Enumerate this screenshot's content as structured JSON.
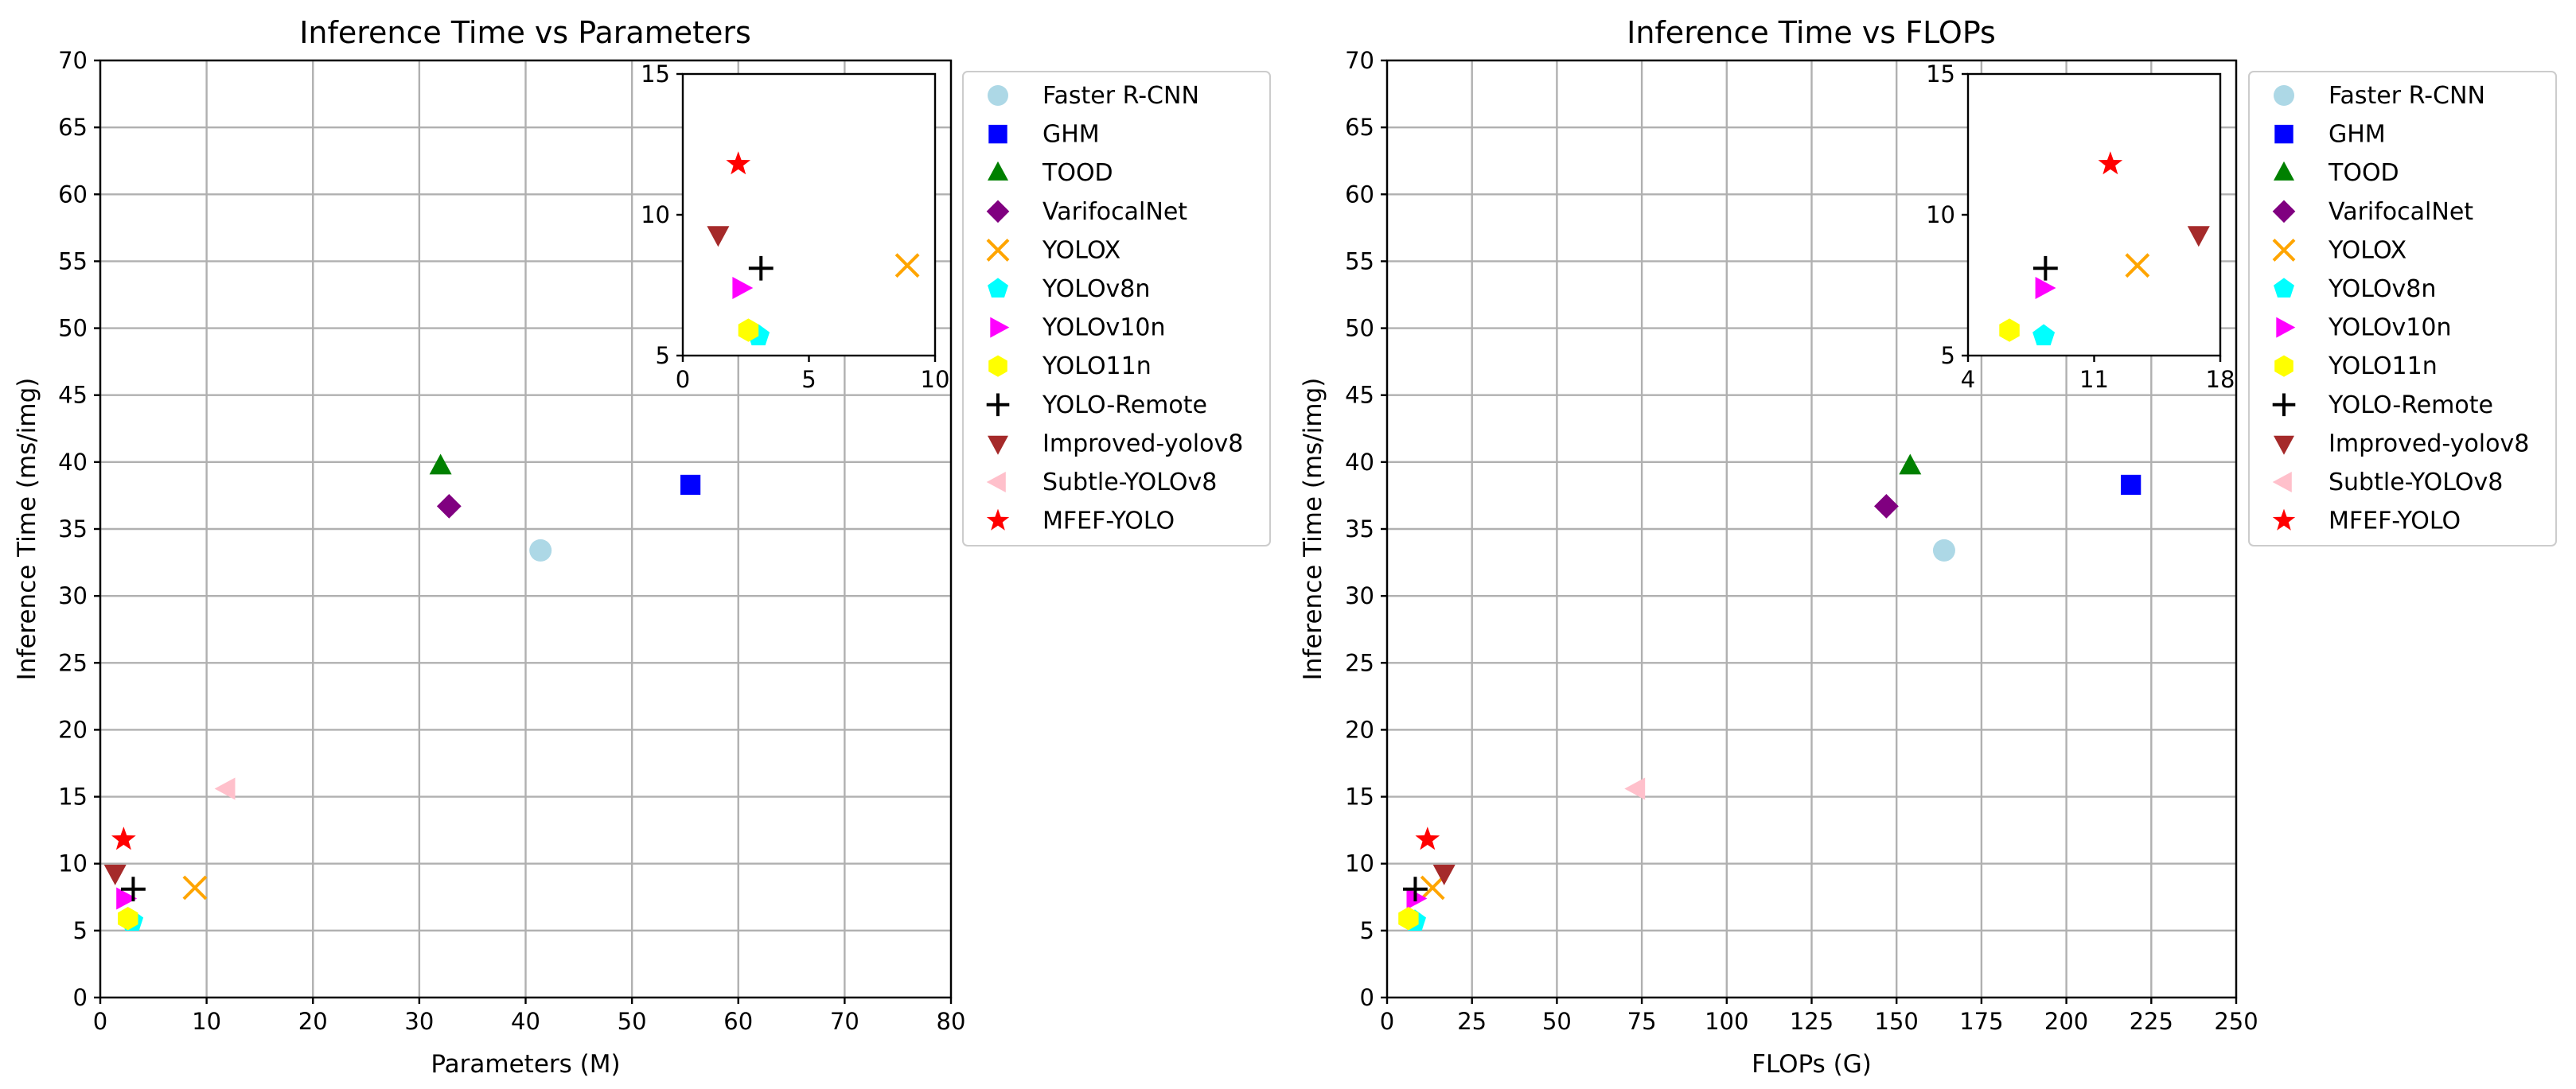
{
  "colors": {
    "faster_rcnn": "#add8e6",
    "ghm": "#0000ff",
    "tood": "#008000",
    "varifocalnet": "#800080",
    "yolox": "#ffa500",
    "yolov8n": "#00ffff",
    "yolov10n": "#ff00ff",
    "yolo11n": "#ffff00",
    "yolo_remote": "#000000",
    "improved_yolov8": "#a52a2a",
    "subtle_yolov8": "#ffc0cb",
    "mfef_yolo": "#ff0000"
  },
  "chart_data": [
    {
      "type": "scatter",
      "title": "Inference Time vs Parameters",
      "xlabel": "Parameters (M)",
      "ylabel": "Inference Time (ms/img)",
      "xlim": [
        0,
        80
      ],
      "ylim": [
        0,
        70
      ],
      "xticks": [
        0,
        10,
        20,
        30,
        40,
        50,
        60,
        70,
        80
      ],
      "yticks": [
        0,
        5,
        10,
        15,
        20,
        25,
        30,
        35,
        40,
        45,
        50,
        55,
        60,
        65,
        70
      ],
      "grid": true,
      "legend_position": "outside-right",
      "points": [
        {
          "name": "Faster R-CNN",
          "marker": "circle",
          "color": "#add8e6",
          "x": 41.4,
          "y": 33.4
        },
        {
          "name": "GHM",
          "marker": "square",
          "color": "#0000ff",
          "x": 55.5,
          "y": 38.3
        },
        {
          "name": "TOOD",
          "marker": "triangle-up",
          "color": "#008000",
          "x": 32.0,
          "y": 39.7
        },
        {
          "name": "VarifocalNet",
          "marker": "diamond",
          "color": "#800080",
          "x": 32.8,
          "y": 36.7
        },
        {
          "name": "YOLOX",
          "marker": "x",
          "color": "#ffa500",
          "x": 8.9,
          "y": 8.2
        },
        {
          "name": "YOLOv8n",
          "marker": "pentagon",
          "color": "#00ffff",
          "x": 3.0,
          "y": 5.7
        },
        {
          "name": "YOLOv10n",
          "marker": "triangle-right",
          "color": "#ff00ff",
          "x": 2.3,
          "y": 7.4
        },
        {
          "name": "YOLO11n",
          "marker": "hexagon",
          "color": "#ffff00",
          "x": 2.6,
          "y": 5.9
        },
        {
          "name": "YOLO-Remote",
          "marker": "plus",
          "color": "#000000",
          "x": 3.1,
          "y": 8.1
        },
        {
          "name": "Improved-yolov8",
          "marker": "triangle-down",
          "color": "#a52a2a",
          "x": 1.4,
          "y": 9.3
        },
        {
          "name": "Subtle-YOLOv8",
          "marker": "triangle-left",
          "color": "#ffc0cb",
          "x": 11.9,
          "y": 15.6
        },
        {
          "name": "MFEF-YOLO",
          "marker": "star",
          "color": "#ff0000",
          "x": 2.2,
          "y": 11.8
        }
      ],
      "inset": {
        "xlim": [
          0,
          10
        ],
        "ylim": [
          5,
          15
        ],
        "xticks": [
          0,
          5,
          10
        ],
        "yticks": [
          5,
          10,
          15
        ]
      }
    },
    {
      "type": "scatter",
      "title": "Inference Time vs FLOPs",
      "xlabel": "FLOPs (G)",
      "ylabel": "Inference Time (ms/img)",
      "xlim": [
        0,
        250
      ],
      "ylim": [
        0,
        70
      ],
      "xticks": [
        0,
        25,
        50,
        75,
        100,
        125,
        150,
        175,
        200,
        225,
        250
      ],
      "yticks": [
        0,
        5,
        10,
        15,
        20,
        25,
        30,
        35,
        40,
        45,
        50,
        55,
        60,
        65,
        70
      ],
      "grid": true,
      "legend_position": "outside-right",
      "points": [
        {
          "name": "Faster R-CNN",
          "marker": "circle",
          "color": "#add8e6",
          "x": 164,
          "y": 33.4
        },
        {
          "name": "GHM",
          "marker": "square",
          "color": "#0000ff",
          "x": 219,
          "y": 38.3
        },
        {
          "name": "TOOD",
          "marker": "triangle-up",
          "color": "#008000",
          "x": 154,
          "y": 39.7
        },
        {
          "name": "VarifocalNet",
          "marker": "diamond",
          "color": "#800080",
          "x": 147,
          "y": 36.7
        },
        {
          "name": "YOLOX",
          "marker": "x",
          "color": "#ffa500",
          "x": 13.4,
          "y": 8.2
        },
        {
          "name": "YOLOv8n",
          "marker": "pentagon",
          "color": "#00ffff",
          "x": 8.2,
          "y": 5.7
        },
        {
          "name": "YOLOv10n",
          "marker": "triangle-right",
          "color": "#ff00ff",
          "x": 8.2,
          "y": 7.4
        },
        {
          "name": "YOLO11n",
          "marker": "hexagon",
          "color": "#ffff00",
          "x": 6.3,
          "y": 5.9
        },
        {
          "name": "YOLO-Remote",
          "marker": "plus",
          "color": "#000000",
          "x": 8.3,
          "y": 8.1
        },
        {
          "name": "Improved-yolov8",
          "marker": "triangle-down",
          "color": "#a52a2a",
          "x": 16.8,
          "y": 9.3
        },
        {
          "name": "Subtle-YOLOv8",
          "marker": "triangle-left",
          "color": "#ffc0cb",
          "x": 73.5,
          "y": 15.6
        },
        {
          "name": "MFEF-YOLO",
          "marker": "star",
          "color": "#ff0000",
          "x": 11.9,
          "y": 11.8
        }
      ],
      "inset": {
        "xlim": [
          4,
          18
        ],
        "ylim": [
          5,
          15
        ],
        "xticks": [
          4,
          11,
          18
        ],
        "yticks": [
          5,
          10,
          15
        ]
      }
    }
  ]
}
